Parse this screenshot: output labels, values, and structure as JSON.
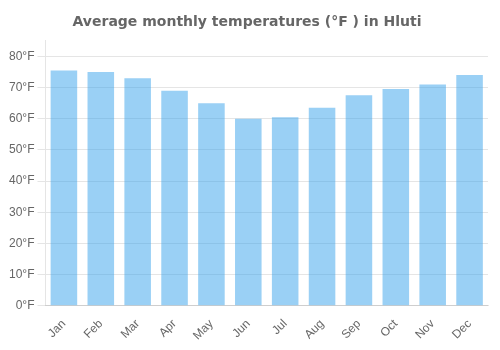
{
  "chart_data": {
    "type": "bar",
    "title": "Average monthly temperatures (°F ) in Hluti",
    "categories": [
      "Jan",
      "Feb",
      "Mar",
      "Apr",
      "May",
      "Jun",
      "Jul",
      "Aug",
      "Sep",
      "Oct",
      "Nov",
      "Dec"
    ],
    "values": [
      75.5,
      75.0,
      73.0,
      69.0,
      65.0,
      60.0,
      60.5,
      63.5,
      67.5,
      69.5,
      71.0,
      74.0
    ],
    "ylim": [
      0,
      85
    ],
    "yticks": [
      {
        "value": 0,
        "label": "0°F"
      },
      {
        "value": 10,
        "label": "10°F"
      },
      {
        "value": 20,
        "label": "20°F"
      },
      {
        "value": 30,
        "label": "30°F"
      },
      {
        "value": 40,
        "label": "40°F"
      },
      {
        "value": 50,
        "label": "50°F"
      },
      {
        "value": 60,
        "label": "60°F"
      },
      {
        "value": 70,
        "label": "70°F"
      },
      {
        "value": 80,
        "label": "80°F"
      }
    ],
    "grid": "y"
  }
}
